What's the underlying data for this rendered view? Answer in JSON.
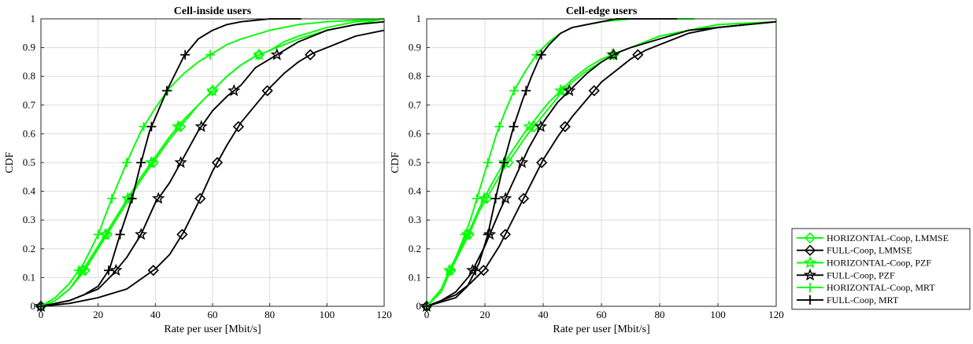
{
  "chart_data": [
    {
      "type": "line",
      "title": "Cell-inside users",
      "xlabel": "Rate per user [Mbit/s]",
      "ylabel": "CDF",
      "xlim": [
        0,
        120
      ],
      "ylim": [
        0,
        1
      ],
      "xticks": [
        "0",
        "20",
        "40",
        "60",
        "80",
        "100",
        "120"
      ],
      "yticks": [
        "0",
        "0.1",
        "0.2",
        "0.3",
        "0.4",
        "0.5",
        "0.6",
        "0.7",
        "0.8",
        "0.9",
        "1"
      ],
      "grid": true,
      "series": [
        {
          "name": "HORIZONTAL-Coop, LMMSE",
          "color": "#00ff00",
          "marker": "diamond",
          "x": [
            0,
            5,
            10,
            15,
            20,
            25,
            30,
            35,
            40,
            45,
            50,
            55,
            60,
            65,
            70,
            75,
            80,
            85,
            90,
            100,
            110,
            120
          ],
          "y": [
            0,
            0.02,
            0.06,
            0.12,
            0.2,
            0.28,
            0.36,
            0.44,
            0.51,
            0.58,
            0.64,
            0.7,
            0.75,
            0.8,
            0.84,
            0.87,
            0.89,
            0.92,
            0.94,
            0.97,
            0.99,
            1.0
          ]
        },
        {
          "name": "FULL-Coop, LMMSE",
          "color": "#000000",
          "marker": "diamond",
          "x": [
            0,
            10,
            20,
            30,
            40,
            45,
            50,
            55,
            60,
            65,
            70,
            75,
            80,
            85,
            90,
            95,
            100,
            110,
            120
          ],
          "y": [
            0,
            0.01,
            0.03,
            0.06,
            0.13,
            0.18,
            0.26,
            0.36,
            0.47,
            0.56,
            0.64,
            0.7,
            0.76,
            0.81,
            0.85,
            0.88,
            0.9,
            0.94,
            0.96
          ]
        },
        {
          "name": "HORIZONTAL-Coop, PZF",
          "color": "#00ff00",
          "marker": "star",
          "x": [
            0,
            5,
            10,
            15,
            20,
            25,
            30,
            35,
            40,
            45,
            50,
            55,
            60,
            65,
            70,
            75,
            80,
            90,
            100,
            110,
            120
          ],
          "y": [
            0,
            0.02,
            0.06,
            0.13,
            0.21,
            0.29,
            0.37,
            0.45,
            0.52,
            0.59,
            0.65,
            0.7,
            0.75,
            0.8,
            0.84,
            0.87,
            0.89,
            0.93,
            0.96,
            0.98,
            1.0
          ]
        },
        {
          "name": "FULL-Coop, PZF",
          "color": "#000000",
          "marker": "star",
          "x": [
            0,
            10,
            20,
            25,
            30,
            35,
            40,
            45,
            50,
            55,
            60,
            65,
            70,
            75,
            80,
            85,
            90,
            100,
            110,
            120
          ],
          "y": [
            0,
            0.02,
            0.06,
            0.11,
            0.17,
            0.25,
            0.36,
            0.43,
            0.52,
            0.61,
            0.68,
            0.73,
            0.77,
            0.83,
            0.86,
            0.89,
            0.92,
            0.96,
            0.98,
            0.99
          ]
        },
        {
          "name": "HORIZONTAL-Coop, MRT",
          "color": "#00ff00",
          "marker": "plus",
          "x": [
            0,
            5,
            10,
            15,
            20,
            25,
            30,
            35,
            40,
            45,
            50,
            55,
            60,
            65,
            70,
            80,
            90,
            100,
            120
          ],
          "y": [
            0,
            0.03,
            0.08,
            0.15,
            0.25,
            0.38,
            0.5,
            0.61,
            0.69,
            0.76,
            0.81,
            0.85,
            0.88,
            0.91,
            0.93,
            0.96,
            0.98,
            0.99,
            1.0
          ]
        },
        {
          "name": "FULL-Coop, MRT",
          "color": "#000000",
          "marker": "plus",
          "x": [
            0,
            10,
            15,
            20,
            24,
            28,
            32,
            35,
            38,
            41,
            44,
            47,
            50,
            55,
            60,
            65,
            70,
            80,
            91
          ],
          "y": [
            0,
            0.02,
            0.04,
            0.07,
            0.13,
            0.26,
            0.38,
            0.5,
            0.61,
            0.68,
            0.75,
            0.81,
            0.87,
            0.93,
            0.96,
            0.98,
            0.99,
            1.0,
            1.0
          ]
        }
      ]
    },
    {
      "type": "line",
      "title": "Cell-edge users",
      "xlabel": "Rate per user [Mbit/s]",
      "ylabel": "CDF",
      "xlim": [
        0,
        120
      ],
      "ylim": [
        0,
        1
      ],
      "xticks": [
        "0",
        "20",
        "40",
        "60",
        "80",
        "100",
        "120"
      ],
      "yticks": [
        "0",
        "0.1",
        "0.2",
        "0.3",
        "0.4",
        "0.5",
        "0.6",
        "0.7",
        "0.8",
        "0.9",
        "1"
      ],
      "grid": true,
      "series": [
        {
          "name": "HORIZONTAL-Coop, LMMSE",
          "color": "#00ff00",
          "marker": "diamond",
          "x": [
            0,
            5,
            8,
            12,
            15,
            18,
            22,
            26,
            30,
            34,
            38,
            42,
            46,
            50,
            55,
            60,
            65,
            70,
            80,
            90,
            100,
            120
          ],
          "y": [
            0,
            0.05,
            0.12,
            0.2,
            0.26,
            0.33,
            0.4,
            0.47,
            0.53,
            0.59,
            0.64,
            0.69,
            0.74,
            0.78,
            0.82,
            0.85,
            0.88,
            0.9,
            0.94,
            0.96,
            0.98,
            0.99
          ]
        },
        {
          "name": "FULL-Coop, LMMSE",
          "color": "#000000",
          "marker": "diamond",
          "x": [
            0,
            5,
            10,
            15,
            20,
            25,
            30,
            35,
            40,
            45,
            50,
            55,
            60,
            65,
            70,
            75,
            80,
            90,
            100,
            110,
            120
          ],
          "y": [
            0,
            0.02,
            0.04,
            0.08,
            0.13,
            0.21,
            0.31,
            0.41,
            0.51,
            0.59,
            0.66,
            0.72,
            0.78,
            0.82,
            0.86,
            0.89,
            0.91,
            0.95,
            0.97,
            0.98,
            0.99
          ]
        },
        {
          "name": "HORIZONTAL-Coop, PZF",
          "color": "#00ff00",
          "marker": "star",
          "x": [
            0,
            5,
            8,
            12,
            15,
            18,
            22,
            26,
            30,
            34,
            38,
            42,
            46,
            50,
            55,
            60,
            65,
            70,
            80,
            90,
            100,
            120
          ],
          "y": [
            0,
            0.06,
            0.13,
            0.21,
            0.27,
            0.34,
            0.42,
            0.49,
            0.55,
            0.61,
            0.66,
            0.71,
            0.75,
            0.79,
            0.83,
            0.86,
            0.88,
            0.9,
            0.94,
            0.96,
            0.98,
            0.99
          ]
        },
        {
          "name": "FULL-Coop, PZF",
          "color": "#000000",
          "marker": "star",
          "x": [
            0,
            5,
            10,
            15,
            20,
            25,
            30,
            35,
            40,
            45,
            50,
            55,
            60,
            65,
            70,
            80,
            90,
            100,
            110,
            120
          ],
          "y": [
            0,
            0.02,
            0.05,
            0.11,
            0.21,
            0.33,
            0.44,
            0.55,
            0.64,
            0.71,
            0.76,
            0.81,
            0.85,
            0.88,
            0.9,
            0.93,
            0.96,
            0.97,
            0.98,
            0.99
          ]
        },
        {
          "name": "HORIZONTAL-Coop, MRT",
          "color": "#00ff00",
          "marker": "plus",
          "x": [
            0,
            5,
            8,
            12,
            15,
            18,
            21,
            24,
            27,
            30,
            34,
            38,
            42,
            46,
            50,
            55,
            60,
            70,
            80,
            92
          ],
          "y": [
            0,
            0.05,
            0.12,
            0.22,
            0.3,
            0.4,
            0.5,
            0.6,
            0.68,
            0.75,
            0.82,
            0.88,
            0.92,
            0.95,
            0.97,
            0.98,
            0.99,
            1.0,
            1.0,
            1.0
          ]
        },
        {
          "name": "FULL-Coop, MRT",
          "color": "#000000",
          "marker": "plus",
          "x": [
            0,
            10,
            14,
            18,
            21,
            24,
            27,
            30,
            33,
            36,
            39,
            42,
            46,
            50,
            55,
            60,
            65,
            70,
            80,
            86
          ],
          "y": [
            0,
            0.03,
            0.07,
            0.15,
            0.25,
            0.39,
            0.52,
            0.63,
            0.72,
            0.8,
            0.87,
            0.91,
            0.95,
            0.97,
            0.98,
            0.99,
            1.0,
            1.0,
            1.0,
            1.0
          ]
        }
      ]
    }
  ],
  "legend": {
    "placement": "right",
    "entries": [
      {
        "label": "HORIZONTAL-Coop, LMMSE",
        "color": "#00ff00",
        "marker": "diamond"
      },
      {
        "label": "FULL-Coop, LMMSE",
        "color": "#000000",
        "marker": "diamond"
      },
      {
        "label": "HORIZONTAL-Coop, PZF",
        "color": "#00ff00",
        "marker": "star"
      },
      {
        "label": "FULL-Coop, PZF",
        "color": "#000000",
        "marker": "star"
      },
      {
        "label": "HORIZONTAL-Coop, MRT",
        "color": "#00ff00",
        "marker": "plus"
      },
      {
        "label": "FULL-Coop, MRT",
        "color": "#000000",
        "marker": "plus"
      }
    ]
  }
}
